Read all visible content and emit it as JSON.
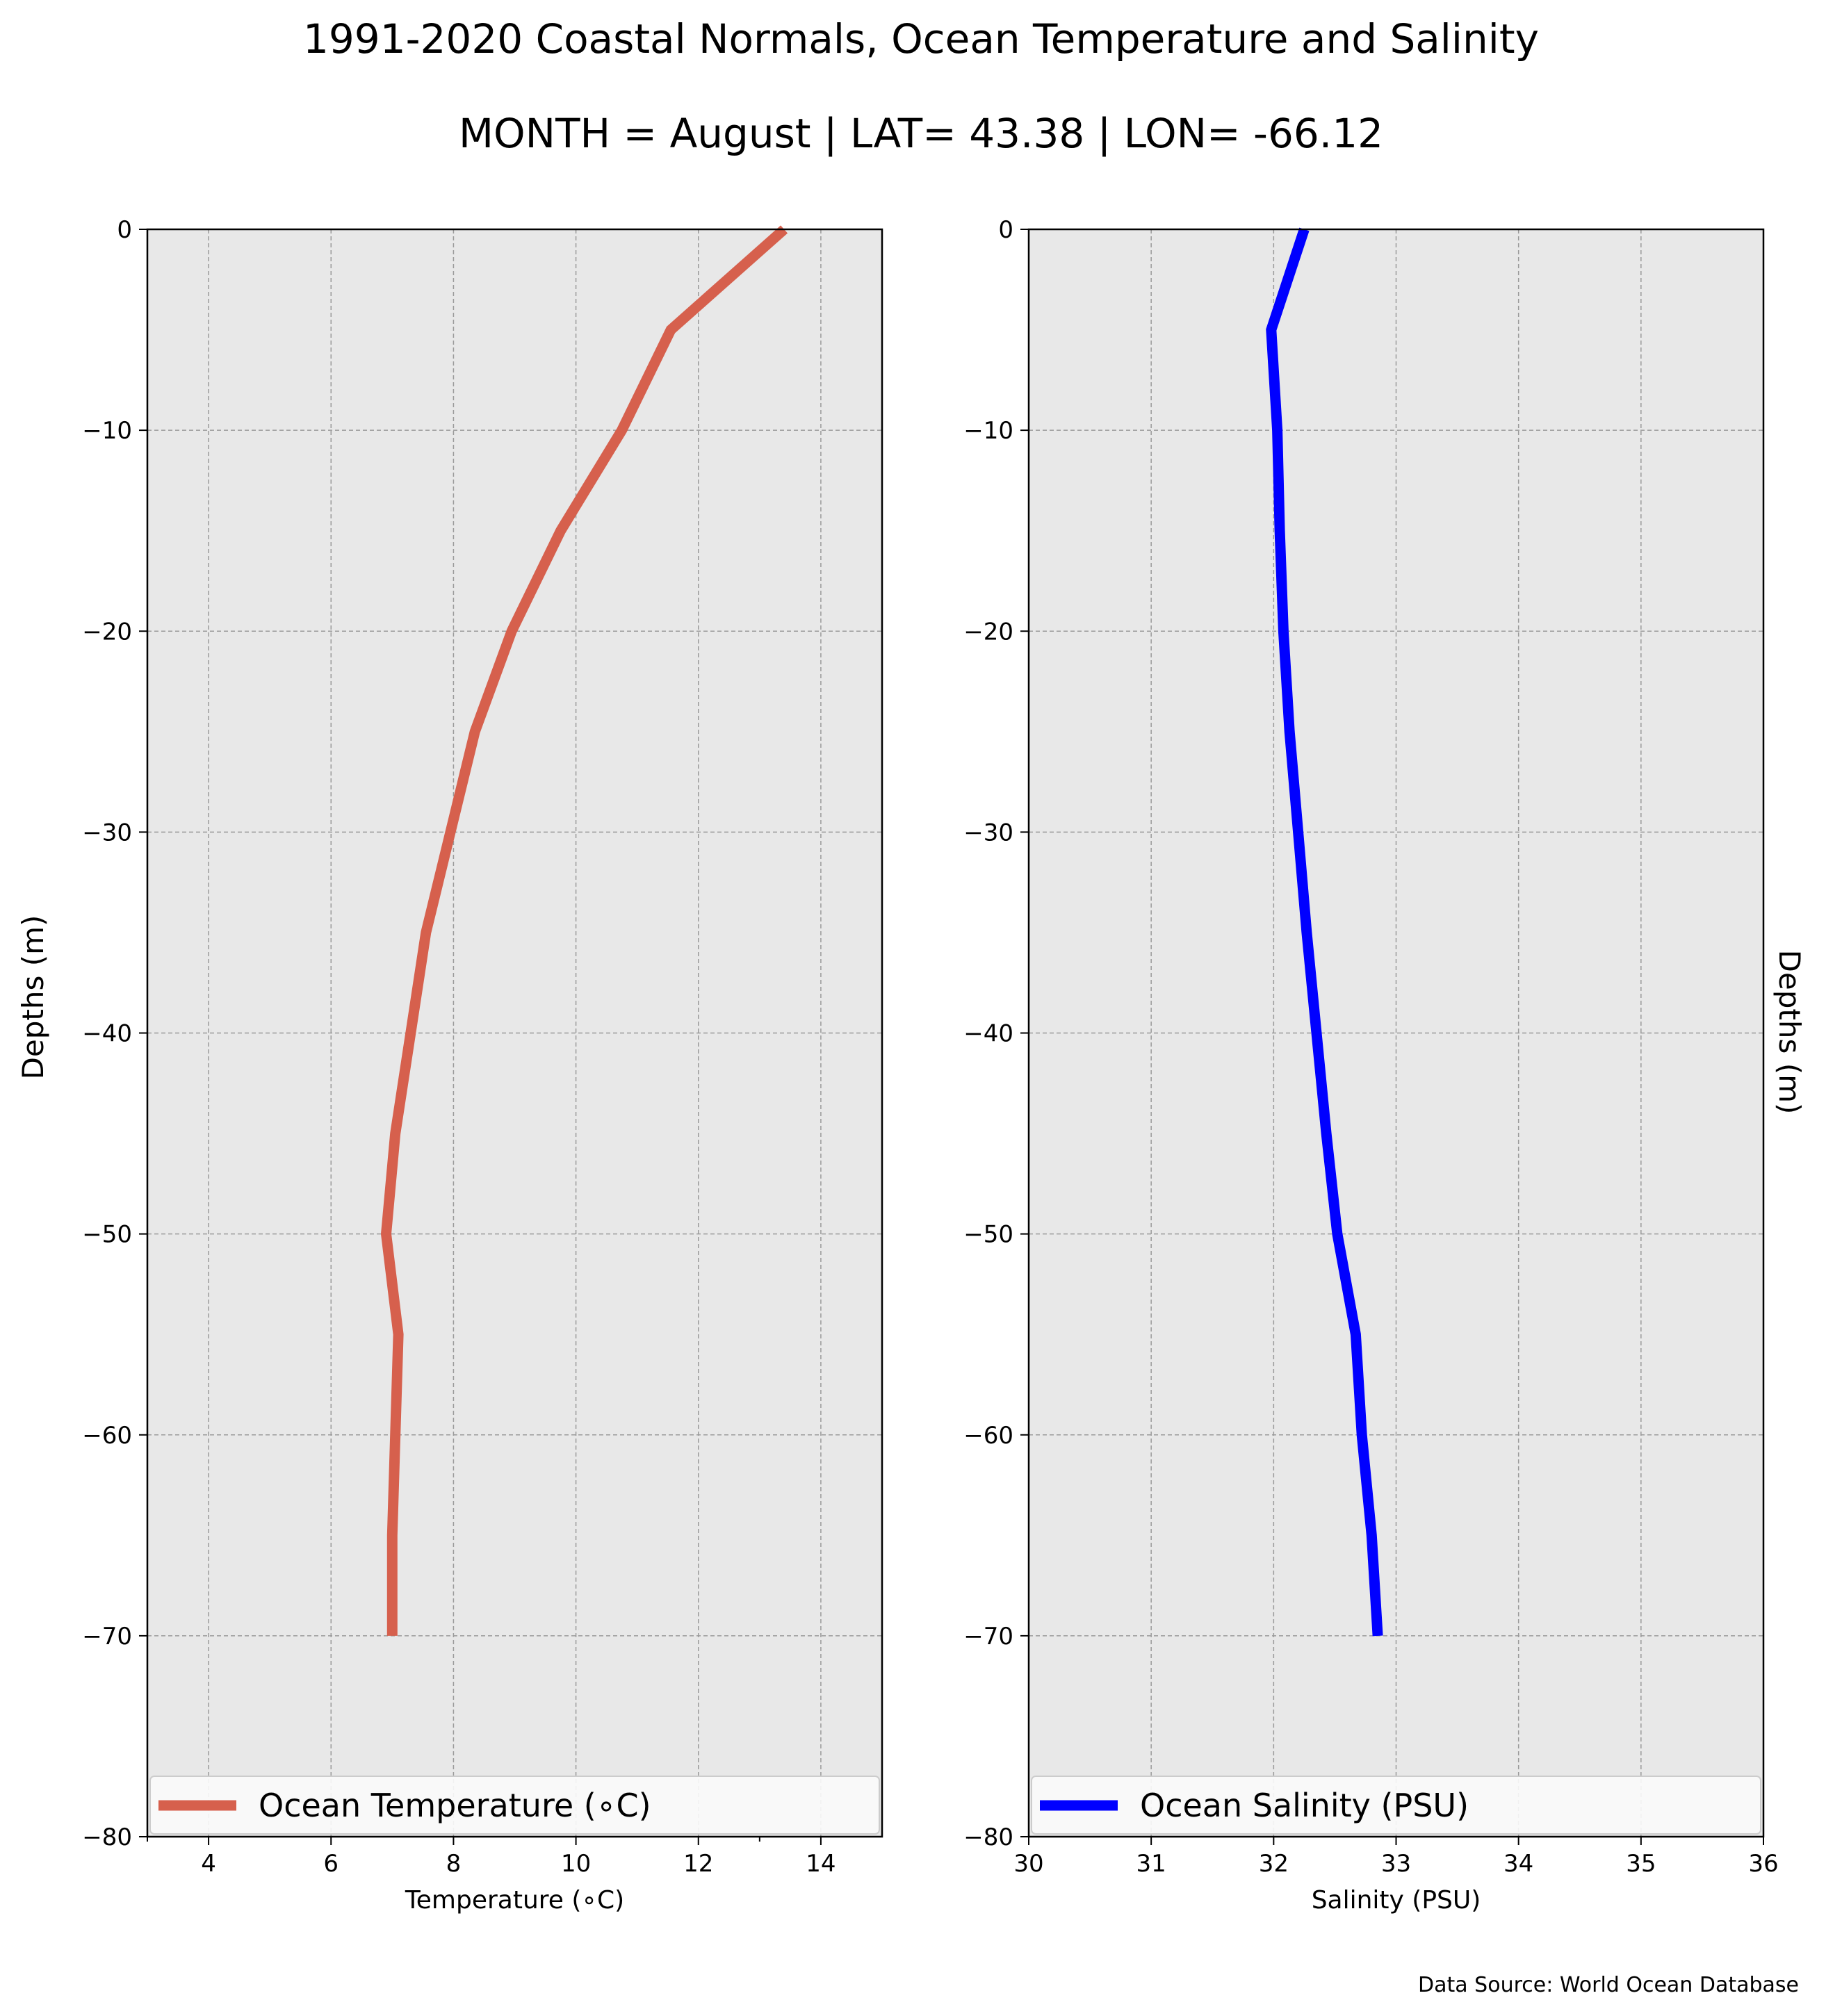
{
  "title": "1991-2020 Coastal Normals, Ocean Temperature and Salinity",
  "subtitle": "MONTH = August | LAT= 43.38 | LON= -66.12",
  "source": "Data Source: World Ocean Database",
  "colors": {
    "temperature": "#d6604d",
    "salinity": "#0000ff",
    "panel": "#e8e8e8",
    "grid": "#9a9a9a"
  },
  "chart_data": [
    {
      "type": "line",
      "xlabel": "Temperature ($^\\circ$C)",
      "xlabel_display": "Temperature (∘C)",
      "ylabel": "Depths (m)",
      "xlim": [
        3,
        15
      ],
      "ylim": [
        -80,
        0
      ],
      "xticks": [
        4,
        6,
        8,
        10,
        12,
        14
      ],
      "xtick_labels": [
        "4",
        "6",
        "8",
        "10",
        "12",
        "14"
      ],
      "yticks": [
        0,
        -10,
        -20,
        -30,
        -40,
        -50,
        -60,
        -70,
        -80
      ],
      "ytick_labels": [
        "0",
        "−10",
        "−20",
        "−30",
        "−40",
        "−50",
        "−60",
        "−70",
        "−80"
      ],
      "grid": true,
      "legend_position": "lower-center",
      "series": [
        {
          "name": "Ocean Temperature (∘C)",
          "color": "#d6604d",
          "depth": [
            0,
            -5,
            -10,
            -15,
            -20,
            -25,
            -30,
            -35,
            -40,
            -45,
            -50,
            -55,
            -60,
            -65,
            -70
          ],
          "values": [
            13.4,
            11.55,
            10.75,
            9.75,
            8.95,
            8.35,
            7.95,
            7.55,
            7.3,
            7.05,
            6.9,
            7.1,
            7.05,
            7.0,
            7.0
          ]
        }
      ]
    },
    {
      "type": "line",
      "xlabel": "Salinity (PSU)",
      "ylabel": "Depths (m)",
      "xlim": [
        30,
        36
      ],
      "ylim": [
        -80,
        0
      ],
      "xticks": [
        30,
        31,
        32,
        33,
        34,
        35,
        36
      ],
      "xtick_labels": [
        "30",
        "31",
        "32",
        "33",
        "34",
        "35",
        "36"
      ],
      "yticks": [
        0,
        -10,
        -20,
        -30,
        -40,
        -50,
        -60,
        -70,
        -80
      ],
      "ytick_labels": [
        "0",
        "−10",
        "−20",
        "−30",
        "−40",
        "−50",
        "−60",
        "−70",
        "−80"
      ],
      "grid": true,
      "legend_position": "lower-center",
      "series": [
        {
          "name": "Ocean Salinity (PSU)",
          "color": "#0000ff",
          "depth": [
            0,
            -5,
            -10,
            -15,
            -20,
            -25,
            -30,
            -35,
            -40,
            -45,
            -50,
            -55,
            -60,
            -65,
            -70
          ],
          "values": [
            32.25,
            31.98,
            32.03,
            32.05,
            32.08,
            32.13,
            32.2,
            32.27,
            32.35,
            32.43,
            32.52,
            32.67,
            32.72,
            32.8,
            32.85
          ]
        }
      ]
    }
  ]
}
